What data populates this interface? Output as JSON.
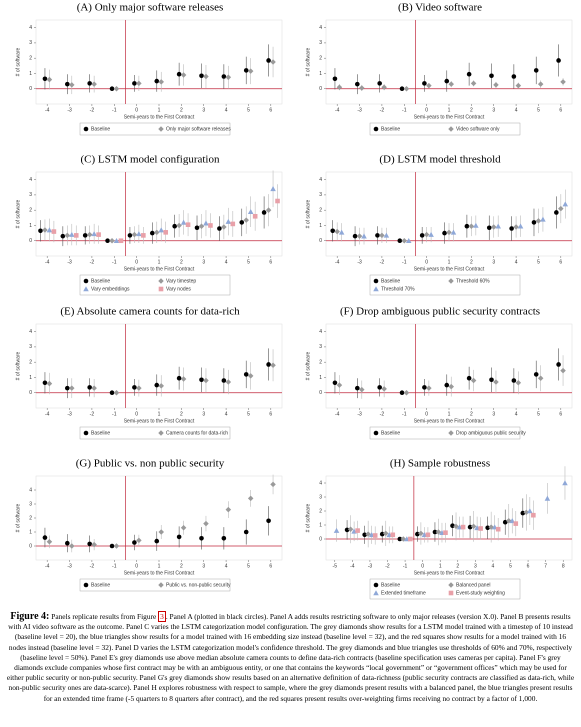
{
  "chart_data": [
    {
      "type": "errorbar",
      "title": "(A) Only major software releases",
      "ylabel": "# of software",
      "xlabel": "Semi-years to the First Contract",
      "xlim": [
        -4.5,
        6.5
      ],
      "xticks": [
        -4,
        -3,
        -2,
        -1,
        0,
        1,
        2,
        3,
        4,
        5,
        6
      ],
      "ylim": [
        -1,
        4.5
      ],
      "yticks": [
        0,
        1,
        2,
        3,
        4
      ],
      "vline": -0.5,
      "hline": 0,
      "x": [
        -4,
        -3,
        -2,
        -1,
        0,
        1,
        2,
        3,
        4,
        5,
        6
      ],
      "series": [
        {
          "name": "Baseline",
          "color": "#000000",
          "marker": "circle",
          "values": [
            0.65,
            0.3,
            0.35,
            0,
            0.35,
            0.5,
            0.95,
            0.85,
            0.8,
            1.2,
            1.85
          ],
          "errors": [
            0.7,
            0.65,
            0.6,
            0,
            0.55,
            0.7,
            0.75,
            0.8,
            0.8,
            0.9,
            1.05
          ]
        },
        {
          "name": "Only major software releases",
          "color": "#9a9a9a",
          "marker": "diamond",
          "values": [
            0.6,
            0.25,
            0.3,
            0,
            0.35,
            0.45,
            0.9,
            0.8,
            0.75,
            1.15,
            1.75
          ],
          "errors": [
            0.65,
            0.6,
            0.55,
            0,
            0.5,
            0.65,
            0.7,
            0.75,
            0.75,
            0.85,
            1.0
          ]
        }
      ]
    },
    {
      "type": "errorbar",
      "title": "(B) Video software",
      "ylabel": "# of software",
      "xlabel": "Semi-years to the First Contract",
      "xlim": [
        -4.5,
        6.5
      ],
      "xticks": [
        -4,
        -3,
        -2,
        -1,
        0,
        1,
        2,
        3,
        4,
        5,
        6
      ],
      "ylim": [
        -1,
        4.5
      ],
      "yticks": [
        0,
        1,
        2,
        3,
        4
      ],
      "vline": -0.5,
      "hline": 0,
      "x": [
        -4,
        -3,
        -2,
        -1,
        0,
        1,
        2,
        3,
        4,
        5,
        6
      ],
      "series": [
        {
          "name": "Baseline",
          "color": "#000000",
          "marker": "circle",
          "values": [
            0.65,
            0.3,
            0.35,
            0,
            0.35,
            0.5,
            0.95,
            0.85,
            0.8,
            1.2,
            1.85
          ],
          "errors": [
            0.7,
            0.65,
            0.6,
            0,
            0.55,
            0.7,
            0.75,
            0.8,
            0.8,
            0.9,
            1.05
          ]
        },
        {
          "name": "Video software only",
          "color": "#9a9a9a",
          "marker": "diamond",
          "values": [
            0.1,
            0.05,
            0.1,
            0,
            0.2,
            0.3,
            0.35,
            0.25,
            0.2,
            0.3,
            0.45
          ],
          "errors": [
            0.2,
            0.2,
            0.2,
            0,
            0.15,
            0.2,
            0.2,
            0.2,
            0.2,
            0.25,
            0.25
          ]
        }
      ]
    },
    {
      "type": "errorbar",
      "title": "(C) LSTM model configuration",
      "ylabel": "# of software",
      "xlabel": "Semi-years to the First Contract",
      "xlim": [
        -4.5,
        6.5
      ],
      "xticks": [
        -4,
        -3,
        -2,
        -1,
        0,
        1,
        2,
        3,
        4,
        5,
        6
      ],
      "ylim": [
        -1,
        4.5
      ],
      "yticks": [
        0,
        1,
        2,
        3,
        4
      ],
      "vline": -0.5,
      "hline": 0,
      "x": [
        -4,
        -3,
        -2,
        -1,
        0,
        1,
        2,
        3,
        4,
        5,
        6
      ],
      "series": [
        {
          "name": "Baseline",
          "color": "#000000",
          "marker": "circle",
          "values": [
            0.65,
            0.3,
            0.35,
            0,
            0.35,
            0.5,
            0.95,
            0.85,
            0.8,
            1.2,
            1.85
          ],
          "errors": [
            0.7,
            0.65,
            0.6,
            0,
            0.55,
            0.7,
            0.75,
            0.8,
            0.8,
            0.9,
            1.05
          ]
        },
        {
          "name": "Vary timestep",
          "color": "#9a9a9a",
          "marker": "diamond",
          "values": [
            0.7,
            0.35,
            0.4,
            0,
            0.4,
            0.55,
            1.0,
            0.95,
            0.9,
            1.35,
            2.0
          ],
          "errors": [
            0.7,
            0.65,
            0.6,
            0,
            0.55,
            0.7,
            0.75,
            0.8,
            0.8,
            0.9,
            1.05
          ]
        },
        {
          "name": "Vary embeddings",
          "color": "#8fa8d8",
          "marker": "triangle",
          "values": [
            0.7,
            0.4,
            0.45,
            0,
            0.45,
            0.7,
            1.2,
            1.15,
            1.25,
            1.9,
            3.4
          ],
          "errors": [
            0.75,
            0.7,
            0.65,
            0,
            0.6,
            0.75,
            0.8,
            0.85,
            0.9,
            1.0,
            1.2
          ]
        },
        {
          "name": "Vary nodes",
          "color": "#e8a0a8",
          "marker": "square",
          "values": [
            0.6,
            0.35,
            0.4,
            0,
            0.35,
            0.55,
            1.05,
            1.0,
            1.1,
            1.6,
            2.6
          ],
          "errors": [
            0.7,
            0.65,
            0.6,
            0,
            0.55,
            0.7,
            0.75,
            0.8,
            0.85,
            0.95,
            1.1
          ]
        }
      ]
    },
    {
      "type": "errorbar",
      "title": "(D) LSTM model threshold",
      "ylabel": "# of software",
      "xlabel": "Semi-years to the First Contract",
      "xlim": [
        -4.5,
        6.5
      ],
      "xticks": [
        -4,
        -3,
        -2,
        -1,
        0,
        1,
        2,
        3,
        4,
        5,
        6
      ],
      "ylim": [
        -1,
        4.5
      ],
      "yticks": [
        0,
        1,
        2,
        3,
        4
      ],
      "vline": -0.5,
      "hline": 0,
      "x": [
        -4,
        -3,
        -2,
        -1,
        0,
        1,
        2,
        3,
        4,
        5,
        6
      ],
      "series": [
        {
          "name": "Baseline",
          "color": "#000000",
          "marker": "circle",
          "values": [
            0.65,
            0.3,
            0.35,
            0,
            0.35,
            0.5,
            0.95,
            0.85,
            0.8,
            1.2,
            1.85
          ],
          "errors": [
            0.7,
            0.65,
            0.6,
            0,
            0.55,
            0.7,
            0.75,
            0.8,
            0.8,
            0.9,
            1.05
          ]
        },
        {
          "name": "Threshold 60%",
          "color": "#9a9a9a",
          "marker": "diamond",
          "values": [
            0.6,
            0.3,
            0.35,
            0,
            0.4,
            0.55,
            0.95,
            0.9,
            0.9,
            1.3,
            2.1
          ],
          "errors": [
            0.6,
            0.55,
            0.5,
            0,
            0.5,
            0.6,
            0.65,
            0.7,
            0.7,
            0.8,
            0.95
          ]
        },
        {
          "name": "Threshold 70%",
          "color": "#8fa8d8",
          "marker": "triangle",
          "values": [
            0.55,
            0.3,
            0.35,
            0,
            0.4,
            0.55,
            1.0,
            0.95,
            0.95,
            1.4,
            2.4
          ],
          "errors": [
            0.6,
            0.55,
            0.5,
            0,
            0.5,
            0.6,
            0.65,
            0.7,
            0.7,
            0.8,
            0.95
          ]
        }
      ]
    },
    {
      "type": "errorbar",
      "title": "(E) Absolute camera counts for data-rich",
      "ylabel": "# of software",
      "xlabel": "Semi-years to the First Contract",
      "xlim": [
        -4.5,
        6.5
      ],
      "xticks": [
        -4,
        -3,
        -2,
        -1,
        0,
        1,
        2,
        3,
        4,
        5,
        6
      ],
      "ylim": [
        -1,
        4.5
      ],
      "yticks": [
        0,
        1,
        2,
        3,
        4
      ],
      "vline": -0.5,
      "hline": 0,
      "x": [
        -4,
        -3,
        -2,
        -1,
        0,
        1,
        2,
        3,
        4,
        5,
        6
      ],
      "series": [
        {
          "name": "Baseline",
          "color": "#000000",
          "marker": "circle",
          "values": [
            0.65,
            0.3,
            0.35,
            0,
            0.35,
            0.5,
            0.95,
            0.85,
            0.8,
            1.2,
            1.85
          ],
          "errors": [
            0.7,
            0.65,
            0.6,
            0,
            0.55,
            0.7,
            0.75,
            0.8,
            0.8,
            0.9,
            1.05
          ]
        },
        {
          "name": "Camera counts for data-rich",
          "color": "#9a9a9a",
          "marker": "diamond",
          "values": [
            0.6,
            0.3,
            0.3,
            0,
            0.3,
            0.45,
            0.9,
            0.8,
            0.7,
            1.1,
            1.8
          ],
          "errors": [
            0.7,
            0.65,
            0.6,
            0,
            0.55,
            0.7,
            0.75,
            0.8,
            0.8,
            0.9,
            1.05
          ]
        }
      ]
    },
    {
      "type": "errorbar",
      "title": "(F) Drop ambiguous public security contracts",
      "ylabel": "# of software",
      "xlabel": "Semi-years to the First Contract",
      "xlim": [
        -4.5,
        6.5
      ],
      "xticks": [
        -4,
        -3,
        -2,
        -1,
        0,
        1,
        2,
        3,
        4,
        5,
        6
      ],
      "ylim": [
        -1,
        4.5
      ],
      "yticks": [
        0,
        1,
        2,
        3,
        4
      ],
      "vline": -0.5,
      "hline": 0,
      "x": [
        -4,
        -3,
        -2,
        -1,
        0,
        1,
        2,
        3,
        4,
        5,
        6
      ],
      "series": [
        {
          "name": "Baseline",
          "color": "#000000",
          "marker": "circle",
          "values": [
            0.65,
            0.3,
            0.35,
            0,
            0.35,
            0.5,
            0.95,
            0.85,
            0.8,
            1.2,
            1.85
          ],
          "errors": [
            0.7,
            0.65,
            0.6,
            0,
            0.55,
            0.7,
            0.75,
            0.8,
            0.8,
            0.9,
            1.05
          ]
        },
        {
          "name": "Drop ambiguous public security",
          "color": "#9a9a9a",
          "marker": "diamond",
          "values": [
            0.5,
            0.2,
            0.25,
            0,
            0.3,
            0.4,
            0.8,
            0.7,
            0.65,
            0.95,
            1.45
          ],
          "errors": [
            0.65,
            0.6,
            0.55,
            0,
            0.5,
            0.65,
            0.7,
            0.75,
            0.75,
            0.85,
            1.0
          ]
        }
      ]
    },
    {
      "type": "errorbar",
      "title": "(G) Public vs. non public security",
      "ylabel": "# of software",
      "xlabel": "Semi-years to the First Contract",
      "xlim": [
        -4.5,
        6.5
      ],
      "xticks": [
        -4,
        -3,
        -2,
        -1,
        0,
        1,
        2,
        3,
        4,
        5,
        6
      ],
      "ylim": [
        -1,
        5
      ],
      "yticks": [
        0,
        1,
        2,
        3,
        4
      ],
      "vline": -0.5,
      "hline": 0,
      "x": [
        -4,
        -3,
        -2,
        -1,
        0,
        1,
        2,
        3,
        4,
        5,
        6
      ],
      "series": [
        {
          "name": "Baseline",
          "color": "#000000",
          "marker": "circle",
          "values": [
            0.6,
            0.2,
            0.15,
            0,
            0.25,
            0.35,
            0.65,
            0.55,
            0.55,
            1.0,
            1.8
          ],
          "errors": [
            0.7,
            0.65,
            0.6,
            0,
            0.55,
            0.7,
            0.75,
            0.8,
            0.8,
            0.9,
            1.05
          ]
        },
        {
          "name": "Public vs. non-public security",
          "color": "#9a9a9a",
          "marker": "diamond",
          "values": [
            0.3,
            0.0,
            0.1,
            0,
            0.4,
            1.0,
            1.3,
            1.6,
            2.6,
            3.4,
            4.4
          ],
          "errors": [
            0.45,
            0.45,
            0.4,
            0,
            0.4,
            0.5,
            0.5,
            0.55,
            0.6,
            0.6,
            0.7
          ]
        }
      ]
    },
    {
      "type": "errorbar",
      "title": "(H) Sample robustness",
      "ylabel": "# of software",
      "xlabel": "Semi-years to the First Contract",
      "xlim": [
        -5.5,
        8.5
      ],
      "xticks": [
        -5,
        -4,
        -3,
        -2,
        -1,
        0,
        1,
        2,
        3,
        4,
        5,
        6,
        7,
        8
      ],
      "ylim": [
        -1.5,
        4.5
      ],
      "yticks": [
        0,
        1,
        2,
        3,
        4
      ],
      "vline": -0.5,
      "hline": 0,
      "x": [
        -5,
        -4,
        -3,
        -2,
        -1,
        0,
        1,
        2,
        3,
        4,
        5,
        6,
        7,
        8
      ],
      "series": [
        {
          "name": "Baseline",
          "color": "#000000",
          "marker": "circle",
          "values": [
            null,
            0.65,
            0.3,
            0.35,
            0,
            0.35,
            0.5,
            0.95,
            0.85,
            0.8,
            1.2,
            1.85,
            null,
            null
          ],
          "errors": [
            null,
            0.7,
            0.65,
            0.6,
            0,
            0.55,
            0.7,
            0.75,
            0.8,
            0.8,
            0.9,
            1.05,
            null,
            null
          ]
        },
        {
          "name": "Balanced panel",
          "color": "#9a9a9a",
          "marker": "diamond",
          "values": [
            null,
            0.7,
            0.35,
            0.4,
            0,
            0.4,
            0.5,
            0.9,
            0.9,
            0.85,
            1.3,
            1.9,
            null,
            null
          ],
          "errors": [
            null,
            1.0,
            0.95,
            0.9,
            0,
            0.8,
            0.95,
            1.0,
            1.1,
            1.1,
            1.2,
            1.3,
            null,
            null
          ]
        },
        {
          "name": "Extended timeframe",
          "color": "#8fa8d8",
          "marker": "triangle",
          "values": [
            0.6,
            0.55,
            0.3,
            0.3,
            0,
            0.3,
            0.45,
            0.85,
            0.8,
            0.85,
            1.3,
            2.0,
            2.9,
            4.0
          ],
          "errors": [
            0.8,
            0.7,
            0.65,
            0.6,
            0,
            0.55,
            0.7,
            0.75,
            0.8,
            0.85,
            0.9,
            1.0,
            1.1,
            1.2
          ]
        },
        {
          "name": "Event-study weighting",
          "color": "#e8a0a8",
          "marker": "square",
          "values": [
            null,
            0.6,
            0.25,
            0.3,
            0,
            0.3,
            0.45,
            0.85,
            0.75,
            0.7,
            1.1,
            1.7,
            null,
            null
          ],
          "errors": [
            null,
            0.7,
            0.65,
            0.6,
            0,
            0.55,
            0.7,
            0.75,
            0.8,
            0.8,
            0.9,
            1.05,
            null,
            null
          ]
        }
      ]
    }
  ],
  "caption": {
    "label": "Figure 4:",
    "text_before": " Panels replicate results from Figure ",
    "ref": "3",
    "text_after": ". Panel A (plotted in black circles). Panel A adds results restricting software to only major releases (version X.0). Panel B presents results with AI video software as the outcome. Panel C varies the LSTM categorization model configuration. The grey diamonds show results for a LSTM model trained with a timestep of 10 instead (baseline level = 20), the blue triangles show results for a model trained with 16 embedding size instead (baseline level = 32), and the red squares show results for a model trained with 16 nodes instead (baseline level = 32). Panel D varies the LSTM categorization model's confidence threshold. The grey diamonds and blue triangles use thresholds of 60% and 70%, respectively (baseline level = 50%). Panel E's grey diamonds use above median absolute camera counts to define data-rich contracts (baseline specification uses cameras per capita). Panel F's grey diamonds exclude companies whose first contract may be with an ambiguous entity, or one that contains the keywords “local government” or “government offices” which may be used for either public security or non-public security. Panel G's grey diamonds show results based on an alternative definition of data-richness (public security contracts are classified as data-rich, while non-public security ones are data-scarce). Panel H explores robustness with respect to sample, where the grey diamonds present results with a balanced panel, the blue triangles present results for an extended time frame (-5 quarters to 8 quarters after contract), and the red squares present results over-weighting firms receiving no contract by a factor of 1,000."
  }
}
